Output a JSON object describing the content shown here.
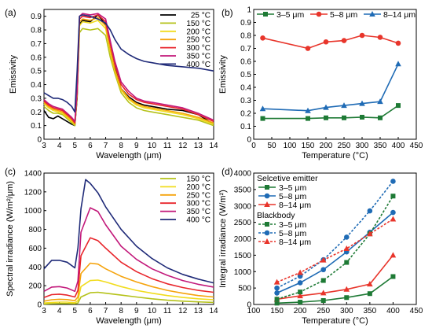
{
  "chart_data": [
    {
      "panel": "(a)",
      "type": "line",
      "xlabel": "Wavelength (μm)",
      "ylabel": "Emissivity",
      "xlim": [
        3,
        14
      ],
      "ylim": [
        0,
        0.95
      ],
      "xticks": [
        3,
        4,
        5,
        6,
        7,
        8,
        9,
        10,
        11,
        12,
        13,
        14
      ],
      "yticks": [
        0,
        0.1,
        0.2,
        0.3,
        0.4,
        0.5,
        0.6,
        0.7,
        0.8,
        0.9
      ],
      "legend": "top-right",
      "series": [
        {
          "name": "25 °C",
          "color": "#000000",
          "x": [
            3,
            3.3,
            3.6,
            3.9,
            4.2,
            4.5,
            4.8,
            5.0,
            5.15,
            5.3,
            5.5,
            6,
            6.5,
            7,
            7.3,
            7.6,
            8,
            8.5,
            9,
            9.5,
            10,
            11,
            12,
            13,
            14
          ],
          "y": [
            0.21,
            0.16,
            0.15,
            0.17,
            0.15,
            0.13,
            0.11,
            0.1,
            0.3,
            0.84,
            0.87,
            0.86,
            0.91,
            0.84,
            0.68,
            0.52,
            0.37,
            0.31,
            0.27,
            0.25,
            0.24,
            0.22,
            0.21,
            0.18,
            0.11
          ]
        },
        {
          "name": "150 °C",
          "color": "#b5c21a",
          "x": [
            3,
            3.3,
            3.6,
            3.9,
            4.2,
            4.5,
            4.8,
            5.0,
            5.15,
            5.3,
            5.5,
            6,
            6.5,
            7,
            7.3,
            7.6,
            8,
            8.5,
            9,
            9.5,
            10,
            11,
            12,
            13,
            14
          ],
          "y": [
            0.24,
            0.21,
            0.19,
            0.19,
            0.18,
            0.15,
            0.12,
            0.1,
            0.32,
            0.78,
            0.81,
            0.8,
            0.81,
            0.76,
            0.6,
            0.48,
            0.34,
            0.27,
            0.23,
            0.21,
            0.2,
            0.18,
            0.16,
            0.14,
            0.1
          ]
        },
        {
          "name": "200 °C",
          "color": "#f1dc1e",
          "x": [
            3,
            3.3,
            3.6,
            3.9,
            4.2,
            4.5,
            4.8,
            5.0,
            5.15,
            5.3,
            5.5,
            6,
            6.5,
            7,
            7.3,
            7.6,
            8,
            8.5,
            9,
            9.5,
            10,
            11,
            12,
            13,
            14
          ],
          "y": [
            0.26,
            0.23,
            0.21,
            0.2,
            0.19,
            0.16,
            0.13,
            0.11,
            0.33,
            0.83,
            0.86,
            0.85,
            0.87,
            0.81,
            0.64,
            0.5,
            0.36,
            0.29,
            0.25,
            0.23,
            0.22,
            0.2,
            0.18,
            0.15,
            0.11
          ]
        },
        {
          "name": "250 °C",
          "color": "#f5a30c",
          "x": [
            3,
            3.3,
            3.6,
            3.9,
            4.2,
            4.5,
            4.8,
            5.0,
            5.15,
            5.3,
            5.5,
            6,
            6.5,
            7,
            7.3,
            7.6,
            8,
            8.5,
            9,
            9.5,
            10,
            11,
            12,
            13,
            14
          ],
          "y": [
            0.27,
            0.24,
            0.22,
            0.21,
            0.2,
            0.17,
            0.14,
            0.11,
            0.34,
            0.86,
            0.88,
            0.87,
            0.89,
            0.83,
            0.66,
            0.51,
            0.37,
            0.3,
            0.26,
            0.24,
            0.23,
            0.21,
            0.19,
            0.16,
            0.12
          ]
        },
        {
          "name": "300 °C",
          "color": "#e8252b",
          "x": [
            3,
            3.3,
            3.6,
            3.9,
            4.2,
            4.5,
            4.8,
            5.0,
            5.15,
            5.3,
            5.5,
            6,
            6.5,
            7,
            7.3,
            7.6,
            8,
            8.5,
            9,
            9.5,
            10,
            11,
            12,
            13,
            14
          ],
          "y": [
            0.28,
            0.25,
            0.23,
            0.22,
            0.21,
            0.18,
            0.15,
            0.12,
            0.35,
            0.88,
            0.9,
            0.89,
            0.91,
            0.86,
            0.7,
            0.55,
            0.4,
            0.33,
            0.29,
            0.27,
            0.26,
            0.24,
            0.22,
            0.18,
            0.13
          ]
        },
        {
          "name": "350 °C",
          "color": "#c2187a",
          "x": [
            3,
            3.3,
            3.6,
            3.9,
            4.2,
            4.5,
            4.8,
            5.0,
            5.15,
            5.3,
            5.5,
            6,
            6.5,
            7,
            7.3,
            7.6,
            8,
            8.5,
            9,
            9.5,
            10,
            11,
            12,
            13,
            14
          ],
          "y": [
            0.29,
            0.26,
            0.24,
            0.23,
            0.22,
            0.19,
            0.16,
            0.13,
            0.36,
            0.9,
            0.92,
            0.91,
            0.92,
            0.88,
            0.72,
            0.57,
            0.42,
            0.35,
            0.3,
            0.28,
            0.27,
            0.25,
            0.23,
            0.19,
            0.14
          ]
        },
        {
          "name": "400 °C",
          "color": "#1f2a78",
          "x": [
            3,
            3.3,
            3.6,
            3.9,
            4.2,
            4.5,
            4.8,
            5.0,
            5.15,
            5.3,
            5.5,
            6,
            6.5,
            7,
            7.3,
            7.6,
            8,
            8.5,
            9,
            9.5,
            10,
            11,
            12,
            13,
            14
          ],
          "y": [
            0.34,
            0.32,
            0.3,
            0.3,
            0.29,
            0.27,
            0.24,
            0.2,
            0.5,
            0.9,
            0.91,
            0.9,
            0.88,
            0.85,
            0.8,
            0.73,
            0.66,
            0.62,
            0.59,
            0.57,
            0.56,
            0.54,
            0.53,
            0.52,
            0.5
          ]
        }
      ]
    },
    {
      "panel": "(b)",
      "type": "line",
      "xlabel": "Temperature (°C)",
      "ylabel": "Emissivity",
      "xlim": [
        0,
        450
      ],
      "ylim": [
        0,
        1.0
      ],
      "xticks": [
        0,
        50,
        100,
        150,
        200,
        250,
        300,
        350,
        400,
        450
      ],
      "yticks": [
        0,
        0.1,
        0.2,
        0.3,
        0.4,
        0.5,
        0.6,
        0.7,
        0.8,
        0.9,
        1.0
      ],
      "legend": "top",
      "series": [
        {
          "name": "3–5 μm",
          "color": "#1e7a35",
          "marker": "square",
          "x": [
            25,
            150,
            200,
            250,
            300,
            350,
            400
          ],
          "y": [
            0.16,
            0.16,
            0.165,
            0.165,
            0.17,
            0.165,
            0.26
          ]
        },
        {
          "name": "5–8 μm",
          "color": "#e8352b",
          "marker": "circle",
          "x": [
            25,
            150,
            200,
            250,
            300,
            350,
            400
          ],
          "y": [
            0.78,
            0.7,
            0.75,
            0.76,
            0.8,
            0.785,
            0.74
          ]
        },
        {
          "name": "8–14 μm",
          "color": "#1f6bb5",
          "marker": "triangle",
          "x": [
            25,
            150,
            200,
            250,
            300,
            350,
            400
          ],
          "y": [
            0.235,
            0.22,
            0.245,
            0.26,
            0.275,
            0.29,
            0.58
          ]
        }
      ]
    },
    {
      "panel": "(c)",
      "type": "line",
      "xlabel": "Wavelength (μm)",
      "ylabel": "Spectral irradiance (W/m²/μm)",
      "xlim": [
        3,
        14
      ],
      "ylim": [
        0,
        1400
      ],
      "xticks": [
        3,
        4,
        5,
        6,
        7,
        8,
        9,
        10,
        11,
        12,
        13,
        14
      ],
      "yticks": [
        0,
        200,
        400,
        600,
        800,
        1000,
        1200,
        1400
      ],
      "legend": "top-right",
      "series": [
        {
          "name": "150 °C",
          "color": "#b5c21a",
          "x": [
            3,
            3.5,
            4,
            4.5,
            5,
            5.2,
            5.4,
            6,
            6.5,
            7,
            8,
            9,
            10,
            11,
            12,
            13,
            14
          ],
          "y": [
            5,
            8,
            10,
            10,
            8,
            15,
            80,
            125,
            130,
            120,
            100,
            80,
            60,
            45,
            35,
            28,
            22
          ]
        },
        {
          "name": "200 °C",
          "color": "#f1dc1e",
          "x": [
            3,
            3.5,
            4,
            4.5,
            5,
            5.2,
            5.4,
            6,
            6.5,
            7,
            8,
            9,
            10,
            11,
            12,
            13,
            14
          ],
          "y": [
            15,
            22,
            25,
            25,
            18,
            40,
            190,
            255,
            260,
            240,
            190,
            150,
            120,
            95,
            75,
            60,
            50
          ]
        },
        {
          "name": "250 °C",
          "color": "#f5a30c",
          "x": [
            3,
            3.5,
            4,
            4.5,
            5,
            5.2,
            5.4,
            6,
            6.5,
            7,
            8,
            9,
            10,
            11,
            12,
            13,
            14
          ],
          "y": [
            35,
            50,
            55,
            52,
            40,
            80,
            330,
            440,
            430,
            380,
            300,
            240,
            190,
            150,
            120,
            95,
            80
          ]
        },
        {
          "name": "300 °C",
          "color": "#e8252b",
          "x": [
            3,
            3.5,
            4,
            4.5,
            5,
            5.2,
            5.4,
            6,
            6.5,
            7,
            8,
            9,
            10,
            11,
            12,
            13,
            14
          ],
          "y": [
            75,
            105,
            110,
            100,
            80,
            150,
            520,
            710,
            680,
            600,
            450,
            350,
            275,
            220,
            180,
            150,
            130
          ]
        },
        {
          "name": "350 °C",
          "color": "#c2187a",
          "x": [
            3,
            3.5,
            4,
            4.5,
            5,
            5.2,
            5.4,
            6,
            6.5,
            7,
            8,
            9,
            10,
            11,
            12,
            13,
            14
          ],
          "y": [
            140,
            185,
            190,
            175,
            140,
            250,
            770,
            1030,
            990,
            850,
            620,
            480,
            380,
            310,
            255,
            215,
            185
          ]
        },
        {
          "name": "400 °C",
          "color": "#1f2a78",
          "x": [
            3,
            3.5,
            4,
            4.5,
            5,
            5.2,
            5.4,
            5.7,
            6,
            6.5,
            7,
            8,
            9,
            10,
            11,
            12,
            13,
            14
          ],
          "y": [
            380,
            470,
            470,
            450,
            390,
            600,
            1020,
            1330,
            1290,
            1190,
            1040,
            800,
            620,
            490,
            390,
            320,
            270,
            230
          ]
        }
      ]
    },
    {
      "panel": "(d)",
      "type": "line",
      "xlabel": "Temperature (°C)",
      "ylabel": "Integral irradiance (W/m²)",
      "xlim": [
        100,
        450
      ],
      "ylim": [
        0,
        4000
      ],
      "xticks": [
        100,
        150,
        200,
        250,
        300,
        350,
        400,
        450
      ],
      "yticks": [
        0,
        500,
        1000,
        1500,
        2000,
        2500,
        3000,
        3500,
        4000
      ],
      "legend_groups": [
        {
          "title": "Selcetive emitter",
          "entries": [
            "3–5 μm",
            "5–8 μm",
            "8–14 μm"
          ]
        },
        {
          "title": "Blackbody",
          "entries": [
            "3–5 μm",
            "5–8 μm",
            "8–14 μm"
          ]
        }
      ],
      "series": [
        {
          "name": "3–5 μm",
          "group": "Selcetive emitter",
          "color": "#1e7a35",
          "marker": "square",
          "dashed": false,
          "x": [
            150,
            200,
            250,
            300,
            350,
            400
          ],
          "y": [
            40,
            70,
            120,
            210,
            330,
            850
          ]
        },
        {
          "name": "5–8 μm",
          "group": "Selcetive emitter",
          "color": "#1f6bb5",
          "marker": "circle",
          "dashed": false,
          "x": [
            150,
            200,
            250,
            300,
            350,
            400
          ],
          "y": [
            350,
            660,
            1060,
            1600,
            2200,
            2800
          ]
        },
        {
          "name": "8–14 μm",
          "group": "Selcetive emitter",
          "color": "#e8352b",
          "marker": "triangle",
          "dashed": false,
          "x": [
            150,
            200,
            250,
            300,
            350,
            400
          ],
          "y": [
            160,
            260,
            350,
            460,
            620,
            1500
          ]
        },
        {
          "name": "3–5 μm",
          "group": "Blackbody",
          "color": "#1e7a35",
          "marker": "square",
          "dashed": true,
          "x": [
            150,
            200,
            250,
            300,
            350,
            400
          ],
          "y": [
            160,
            380,
            730,
            1280,
            2150,
            3300
          ]
        },
        {
          "name": "5–8 μm",
          "group": "Blackbody",
          "color": "#1f6bb5",
          "marker": "circle",
          "dashed": true,
          "x": [
            150,
            200,
            250,
            300,
            350,
            400
          ],
          "y": [
            500,
            860,
            1360,
            2050,
            2850,
            3750
          ]
        },
        {
          "name": "8–14 μm",
          "group": "Blackbody",
          "color": "#e8352b",
          "marker": "triangle",
          "dashed": true,
          "x": [
            150,
            200,
            250,
            300,
            350,
            400
          ],
          "y": [
            680,
            970,
            1350,
            1700,
            2150,
            2600
          ]
        }
      ]
    }
  ]
}
